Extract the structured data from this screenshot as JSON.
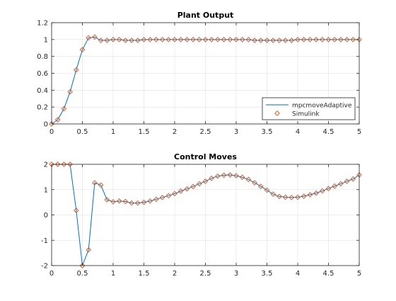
{
  "chart_data": [
    {
      "type": "line",
      "title": "Plant Output",
      "xlabel": "",
      "ylabel": "",
      "xlim": [
        0,
        5
      ],
      "ylim": [
        0,
        1.2
      ],
      "xticks": [
        "0",
        "0.5",
        "1",
        "1.5",
        "2",
        "2.5",
        "3",
        "3.5",
        "4",
        "4.5",
        "5"
      ],
      "yticks": [
        "0",
        "0.2",
        "0.4",
        "0.6",
        "0.8",
        "1",
        "1.2"
      ],
      "grid": true,
      "legend_position": "bottom-right",
      "series": [
        {
          "name": "mpcmoveAdaptive",
          "style": "line",
          "color": "#0072bd",
          "x": [
            0,
            0.1,
            0.2,
            0.3,
            0.4,
            0.5,
            0.6,
            0.7,
            0.8,
            0.9,
            1.0,
            1.1,
            1.2,
            1.3,
            1.4,
            1.5,
            1.6,
            1.7,
            1.8,
            1.9,
            2.0,
            2.1,
            2.2,
            2.3,
            2.4,
            2.5,
            2.6,
            2.7,
            2.8,
            2.9,
            3.0,
            3.1,
            3.2,
            3.3,
            3.4,
            3.5,
            3.6,
            3.7,
            3.8,
            3.9,
            4.0,
            4.1,
            4.2,
            4.3,
            4.4,
            4.5,
            4.6,
            4.7,
            4.8,
            4.9,
            5.0
          ],
          "y": [
            0,
            0.05,
            0.18,
            0.38,
            0.64,
            0.88,
            1.02,
            1.03,
            0.99,
            0.99,
            1.0,
            1.0,
            0.99,
            0.99,
            0.99,
            1.0,
            1.0,
            1.0,
            1.0,
            1.0,
            1.0,
            1.0,
            1.0,
            1.0,
            1.0,
            1.0,
            1.0,
            1.0,
            1.0,
            1.0,
            1.0,
            1.0,
            1.0,
            0.99,
            0.99,
            0.99,
            0.99,
            0.99,
            0.99,
            0.99,
            1.0,
            1.0,
            1.0,
            1.0,
            1.0,
            1.0,
            1.0,
            1.0,
            1.0,
            1.0,
            1.0
          ]
        },
        {
          "name": "Simulink",
          "style": "markers",
          "color": "#d95319",
          "x": [
            0,
            0.1,
            0.2,
            0.3,
            0.4,
            0.5,
            0.6,
            0.7,
            0.8,
            0.9,
            1.0,
            1.1,
            1.2,
            1.3,
            1.4,
            1.5,
            1.6,
            1.7,
            1.8,
            1.9,
            2.0,
            2.1,
            2.2,
            2.3,
            2.4,
            2.5,
            2.6,
            2.7,
            2.8,
            2.9,
            3.0,
            3.1,
            3.2,
            3.3,
            3.4,
            3.5,
            3.6,
            3.7,
            3.8,
            3.9,
            4.0,
            4.1,
            4.2,
            4.3,
            4.4,
            4.5,
            4.6,
            4.7,
            4.8,
            4.9,
            5.0
          ],
          "y": [
            0,
            0.05,
            0.18,
            0.38,
            0.64,
            0.88,
            1.02,
            1.03,
            0.99,
            0.99,
            1.0,
            1.0,
            0.99,
            0.99,
            0.99,
            1.0,
            1.0,
            1.0,
            1.0,
            1.0,
            1.0,
            1.0,
            1.0,
            1.0,
            1.0,
            1.0,
            1.0,
            1.0,
            1.0,
            1.0,
            1.0,
            1.0,
            1.0,
            0.99,
            0.99,
            0.99,
            0.99,
            0.99,
            0.99,
            0.99,
            1.0,
            1.0,
            1.0,
            1.0,
            1.0,
            1.0,
            1.0,
            1.0,
            1.0,
            1.0,
            1.0
          ]
        }
      ]
    },
    {
      "type": "line",
      "title": "Control Moves",
      "xlabel": "",
      "ylabel": "",
      "xlim": [
        0,
        5
      ],
      "ylim": [
        -2,
        2
      ],
      "xticks": [
        "0",
        "0.5",
        "1",
        "1.5",
        "2",
        "2.5",
        "3",
        "3.5",
        "4",
        "4.5",
        "5"
      ],
      "yticks": [
        "-2",
        "-1",
        "0",
        "1",
        "2"
      ],
      "grid": true,
      "series": [
        {
          "name": "mpcmoveAdaptive",
          "style": "line",
          "color": "#0072bd",
          "x": [
            0,
            0.1,
            0.2,
            0.3,
            0.4,
            0.5,
            0.6,
            0.7,
            0.8,
            0.9,
            1.0,
            1.1,
            1.2,
            1.3,
            1.4,
            1.5,
            1.6,
            1.7,
            1.8,
            1.9,
            2.0,
            2.1,
            2.2,
            2.3,
            2.4,
            2.5,
            2.6,
            2.7,
            2.8,
            2.9,
            3.0,
            3.1,
            3.2,
            3.3,
            3.4,
            3.5,
            3.6,
            3.7,
            3.8,
            3.9,
            4.0,
            4.1,
            4.2,
            4.3,
            4.4,
            4.5,
            4.6,
            4.7,
            4.8,
            4.9,
            5.0
          ],
          "y": [
            2.0,
            2.0,
            2.0,
            2.0,
            0.18,
            -2.0,
            -1.38,
            1.27,
            1.18,
            0.6,
            0.52,
            0.55,
            0.53,
            0.47,
            0.47,
            0.5,
            0.55,
            0.62,
            0.69,
            0.76,
            0.84,
            0.94,
            1.03,
            1.12,
            1.23,
            1.33,
            1.45,
            1.53,
            1.57,
            1.58,
            1.55,
            1.49,
            1.4,
            1.27,
            1.13,
            0.98,
            0.82,
            0.73,
            0.7,
            0.69,
            0.7,
            0.74,
            0.8,
            0.86,
            0.95,
            1.04,
            1.14,
            1.23,
            1.33,
            1.42,
            1.58
          ]
        },
        {
          "name": "Simulink",
          "style": "markers",
          "color": "#d95319",
          "x": [
            0,
            0.1,
            0.2,
            0.3,
            0.4,
            0.5,
            0.6,
            0.7,
            0.8,
            0.9,
            1.0,
            1.1,
            1.2,
            1.3,
            1.4,
            1.5,
            1.6,
            1.7,
            1.8,
            1.9,
            2.0,
            2.1,
            2.2,
            2.3,
            2.4,
            2.5,
            2.6,
            2.7,
            2.8,
            2.9,
            3.0,
            3.1,
            3.2,
            3.3,
            3.4,
            3.5,
            3.6,
            3.7,
            3.8,
            3.9,
            4.0,
            4.1,
            4.2,
            4.3,
            4.4,
            4.5,
            4.6,
            4.7,
            4.8,
            4.9,
            5.0
          ],
          "y": [
            2.0,
            2.0,
            2.0,
            2.0,
            0.18,
            -2.0,
            -1.38,
            1.27,
            1.18,
            0.6,
            0.52,
            0.55,
            0.53,
            0.47,
            0.47,
            0.5,
            0.55,
            0.62,
            0.69,
            0.76,
            0.84,
            0.94,
            1.03,
            1.12,
            1.23,
            1.33,
            1.45,
            1.53,
            1.57,
            1.58,
            1.55,
            1.49,
            1.4,
            1.27,
            1.13,
            0.98,
            0.82,
            0.73,
            0.7,
            0.69,
            0.7,
            0.74,
            0.8,
            0.86,
            0.95,
            1.04,
            1.14,
            1.23,
            1.33,
            1.42,
            1.58
          ]
        }
      ]
    }
  ]
}
